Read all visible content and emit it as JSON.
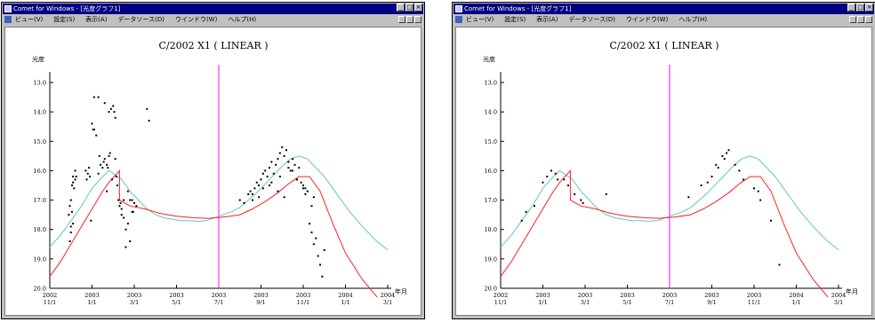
{
  "windows": [
    {
      "title": "Comet for Windows - [光度グラフ1]",
      "menu": [
        "ビュー(V)",
        "設定(S)",
        "表示(A)",
        "データソース(D)",
        "ウインドウ(W)",
        "ヘルプ(H)"
      ],
      "chart": {
        "title": "C/2002 X1 ( LINEAR )",
        "ylabel": "光度",
        "xlabel": "年月",
        "yticks": [
          "13.0",
          "14.0",
          "15.0",
          "16.0",
          "17.0",
          "18.0",
          "19.0",
          "20.0"
        ],
        "xticks": [
          [
            "2002",
            "11/1"
          ],
          [
            "2003",
            "1/1"
          ],
          [
            "2003",
            "3/1"
          ],
          [
            "2003",
            "5/1"
          ],
          [
            "2003",
            "7/1"
          ],
          [
            "2003",
            "9/1"
          ],
          [
            "2003",
            "11/1"
          ],
          [
            "2004",
            "1/1"
          ],
          [
            "2004",
            "3/1"
          ]
        ]
      }
    },
    {
      "title": "Comet for Windows - [光度グラフ1]",
      "menu": [
        "ビュー(V)",
        "設定(S)",
        "表示(A)",
        "データソース(D)",
        "ウインドウ(W)",
        "ヘルプ(H)"
      ],
      "chart": {
        "title": "C/2002 X1 ( LINEAR )",
        "ylabel": "光度",
        "xlabel": "年月",
        "yticks": [
          "13.0",
          "14.0",
          "15.0",
          "16.0",
          "17.0",
          "18.0",
          "19.0",
          "20.0"
        ],
        "xticks": [
          [
            "2002",
            "11/1"
          ],
          [
            "2003",
            "1/1"
          ],
          [
            "2003",
            "3/1"
          ],
          [
            "2003",
            "5/1"
          ],
          [
            "2003",
            "7/1"
          ],
          [
            "2003",
            "9/1"
          ],
          [
            "2003",
            "11/1"
          ],
          [
            "2004",
            "1/1"
          ],
          [
            "2004",
            "3/1"
          ]
        ]
      }
    }
  ],
  "chart_data": [
    {
      "type": "line",
      "title": "C/2002 X1 ( LINEAR )",
      "ylabel": "光度",
      "xlabel": "年月",
      "ylim": [
        20.0,
        13.0
      ],
      "x_unit": "months since 2002-11-01",
      "current_date_marker": 8.0,
      "series": [
        {
          "color": "#5fc8c0",
          "x": [
            0,
            0.5,
            1,
            1.5,
            2,
            2.5,
            2.8,
            3,
            3.4,
            3.8,
            4.2,
            4.6,
            5,
            5.4,
            5.8,
            6.2,
            6.6,
            7,
            7.4,
            7.8,
            8.2,
            8.6,
            9,
            9.4,
            9.8,
            10.2,
            10.6,
            11,
            11.4,
            11.8,
            12.2,
            12.6,
            13,
            13.6,
            14.2,
            14.8,
            15.4,
            16
          ],
          "values": [
            18.6,
            18.2,
            17.7,
            17.2,
            16.6,
            16.2,
            16.0,
            16.1,
            16.3,
            16.7,
            17.0,
            17.3,
            17.5,
            17.6,
            17.65,
            17.7,
            17.7,
            17.72,
            17.7,
            17.6,
            17.5,
            17.4,
            17.25,
            17.0,
            16.75,
            16.45,
            16.15,
            15.85,
            15.6,
            15.5,
            15.6,
            15.9,
            16.2,
            16.8,
            17.4,
            17.9,
            18.35,
            18.7
          ]
        },
        {
          "color": "#ff2020",
          "x": [
            0,
            0.5,
            1,
            1.5,
            2,
            2.5,
            2.8,
            3.3,
            3.3,
            3.8,
            4.5,
            5.2,
            6,
            6.8,
            7.5,
            8.2,
            9,
            9.6,
            10.2,
            10.8,
            11.3,
            11.8,
            12.3,
            12.8,
            13.4,
            14,
            14.8,
            15.5
          ],
          "values": [
            19.6,
            19.1,
            18.5,
            17.9,
            17.3,
            16.7,
            16.4,
            16.0,
            17.0,
            17.2,
            17.3,
            17.45,
            17.55,
            17.6,
            17.62,
            17.58,
            17.5,
            17.3,
            17.05,
            16.75,
            16.45,
            16.2,
            16.2,
            16.7,
            17.8,
            18.8,
            19.7,
            20.3
          ]
        },
        {
          "color": "#000000",
          "type": "scatter",
          "x": [
            0.9,
            0.95,
            1.0,
            1.05,
            1.1,
            1.1,
            1.15,
            1.2,
            1.2,
            1.25,
            0.95,
            1.0,
            1.1,
            1.05,
            1.0,
            1.7,
            1.75,
            1.8,
            1.85,
            1.9,
            2.0,
            2.05,
            2.1,
            2.2,
            2.3,
            2.35,
            2.4,
            2.5,
            2.55,
            2.6,
            2.7,
            2.75,
            2.8,
            2.85,
            2.9,
            2.1,
            2.3,
            2.6,
            2.8,
            3.0,
            3.05,
            3.1,
            3.15,
            3.2,
            3.25,
            3.3,
            3.35,
            3.4,
            3.5,
            3.6,
            3.7,
            3.8,
            3.9,
            4.0,
            4.1,
            3.5,
            3.7,
            3.95,
            2.95,
            2.7,
            1.95,
            4.6,
            4.7,
            3.8,
            3.6,
            3.9,
            3.4,
            3.1,
            9.0,
            9.2,
            9.4,
            9.5,
            9.6,
            9.7,
            9.8,
            9.9,
            10.0,
            10.1,
            10.2,
            10.3,
            10.4,
            10.5,
            10.6,
            10.7,
            10.8,
            10.9,
            11.0,
            11.1,
            11.2,
            11.3,
            11.4,
            11.5,
            11.6,
            11.7,
            11.8,
            11.9,
            12.0,
            12.1,
            12.2,
            12.3,
            12.4,
            12.5,
            12.6,
            12.7,
            12.8,
            12.9,
            13.0,
            10.1,
            10.5,
            10.9,
            11.3,
            11.5,
            11.7,
            12.1,
            12.5,
            9.6,
            9.9,
            10.4,
            10.8,
            11.1,
            12.0,
            12.4
          ],
          "values": [
            17.5,
            17.2,
            17.0,
            16.5,
            16.2,
            16.4,
            16.6,
            16.3,
            16.0,
            16.2,
            18.4,
            18.1,
            17.8,
            17.4,
            17.9,
            16.0,
            16.3,
            16.1,
            15.9,
            16.2,
            14.4,
            14.6,
            14.6,
            14.8,
            16.1,
            15.5,
            15.8,
            15.9,
            15.7,
            15.6,
            15.8,
            15.9,
            15.5,
            15.4,
            13.9,
            13.5,
            13.5,
            13.7,
            14.0,
            13.8,
            14.0,
            14.2,
            16.2,
            16.5,
            17.0,
            17.2,
            17.1,
            17.3,
            17.6,
            18.0,
            16.7,
            17.0,
            17.4,
            17.1,
            17.2,
            17.0,
            17.8,
            17.4,
            16.3,
            16.7,
            17.7,
            13.9,
            14.3,
            18.4,
            18.6,
            17.0,
            17.5,
            15.6,
            17.0,
            17.1,
            16.8,
            16.7,
            16.8,
            16.6,
            16.4,
            16.5,
            16.3,
            16.1,
            16.0,
            16.2,
            15.9,
            15.7,
            16.1,
            15.8,
            15.6,
            15.4,
            15.2,
            15.5,
            15.3,
            15.9,
            16.0,
            15.6,
            15.8,
            16.3,
            15.9,
            16.4,
            16.5,
            16.6,
            16.7,
            17.8,
            18.1,
            18.5,
            18.3,
            18.9,
            19.2,
            19.6,
            18.7,
            16.6,
            16.4,
            16.2,
            15.7,
            16.0,
            16.3,
            16.8,
            16.9,
            17.0,
            16.9,
            16.5,
            16.7,
            16.9,
            16.6,
            17.2
          ]
        }
      ]
    },
    {
      "type": "line",
      "title": "C/2002 X1 ( LINEAR )",
      "ylabel": "光度",
      "xlabel": "年月",
      "ylim": [
        20.0,
        13.0
      ],
      "x_unit": "months since 2002-11-01",
      "current_date_marker": 8.0,
      "series": [
        {
          "color": "#5fc8c0",
          "x": [
            0,
            0.5,
            1,
            1.5,
            2,
            2.5,
            2.8,
            3,
            3.4,
            3.8,
            4.2,
            4.6,
            5,
            5.4,
            5.8,
            6.2,
            6.6,
            7,
            7.4,
            7.8,
            8.2,
            8.6,
            9,
            9.4,
            9.8,
            10.2,
            10.6,
            11,
            11.4,
            11.8,
            12.2,
            12.6,
            13,
            13.6,
            14.2,
            14.8,
            15.4,
            16
          ],
          "values": [
            18.6,
            18.2,
            17.7,
            17.2,
            16.6,
            16.2,
            16.0,
            16.1,
            16.3,
            16.7,
            17.0,
            17.3,
            17.5,
            17.6,
            17.65,
            17.7,
            17.7,
            17.72,
            17.7,
            17.6,
            17.5,
            17.4,
            17.25,
            17.0,
            16.75,
            16.45,
            16.15,
            15.85,
            15.6,
            15.5,
            15.6,
            15.9,
            16.2,
            16.8,
            17.4,
            17.9,
            18.35,
            18.7
          ]
        },
        {
          "color": "#ff2020",
          "x": [
            0,
            0.5,
            1,
            1.5,
            2,
            2.5,
            2.8,
            3.3,
            3.3,
            3.8,
            4.5,
            5.2,
            6,
            6.8,
            7.5,
            8.2,
            9,
            9.6,
            10.2,
            10.8,
            11.3,
            11.8,
            12.3,
            12.8,
            13.4,
            14,
            14.8,
            15.5
          ],
          "values": [
            19.6,
            19.1,
            18.5,
            17.9,
            17.3,
            16.7,
            16.4,
            16.0,
            17.0,
            17.2,
            17.3,
            17.45,
            17.55,
            17.6,
            17.62,
            17.58,
            17.5,
            17.3,
            17.05,
            16.75,
            16.45,
            16.2,
            16.2,
            16.7,
            17.8,
            18.8,
            19.7,
            20.3
          ]
        },
        {
          "color": "#000000",
          "type": "scatter",
          "x": [
            1.0,
            1.2,
            1.6,
            2.0,
            2.2,
            2.4,
            2.6,
            2.7,
            3.0,
            3.2,
            3.5,
            3.8,
            3.9,
            5.0,
            8.9,
            9.5,
            9.8,
            10.0,
            10.2,
            10.3,
            10.5,
            10.6,
            10.7,
            10.8,
            11.1,
            11.3,
            11.5,
            12.0,
            12.2,
            12.8,
            13.2,
            12.3
          ],
          "values": [
            17.7,
            17.4,
            17.2,
            16.4,
            16.2,
            16.0,
            16.1,
            16.3,
            16.3,
            16.5,
            16.8,
            17.0,
            17.1,
            16.8,
            16.9,
            16.5,
            16.4,
            16.2,
            15.8,
            15.9,
            15.5,
            15.6,
            15.4,
            15.3,
            15.8,
            16.0,
            16.3,
            16.6,
            16.7,
            17.7,
            19.2,
            17.0
          ]
        }
      ]
    }
  ]
}
